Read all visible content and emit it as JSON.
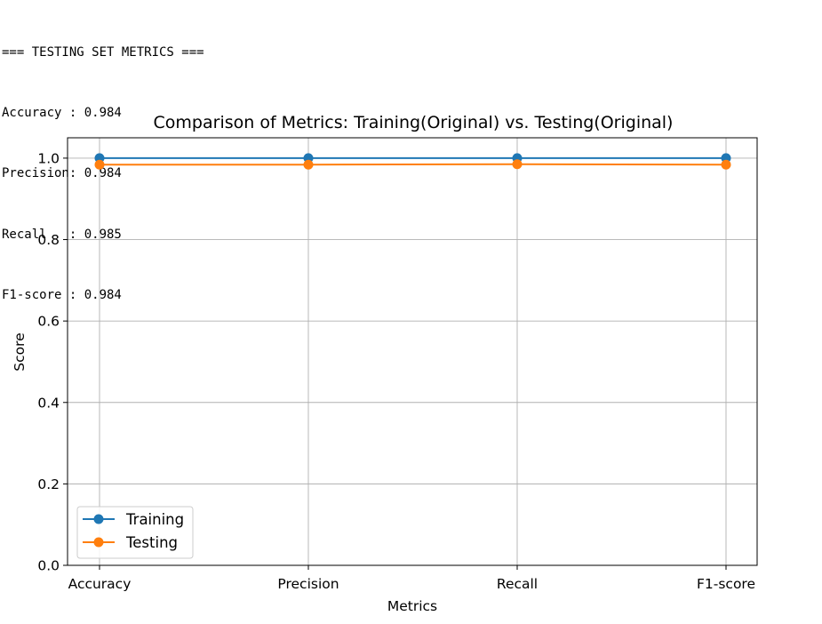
{
  "console": {
    "lines": [
      "=== TESTING SET METRICS ===",
      "Accuracy : 0.984",
      "Precision: 0.984",
      "Recall   : 0.985",
      "F1-score : 0.984"
    ]
  },
  "chart_data": {
    "type": "line",
    "title": "Comparison of Metrics: Training(Original) vs. Testing(Original)",
    "xlabel": "Metrics",
    "ylabel": "Score",
    "categories": [
      "Accuracy",
      "Precision",
      "Recall",
      "F1-score"
    ],
    "ylim": [
      0.0,
      1.05
    ],
    "yticks": [
      "0.0",
      "0.2",
      "0.4",
      "0.6",
      "0.8",
      "1.0"
    ],
    "grid": true,
    "legend_position": "lower-left",
    "series": [
      {
        "name": "Training",
        "color": "#1f77b4",
        "values": [
          1.0,
          1.0,
          1.0,
          1.0
        ]
      },
      {
        "name": "Testing",
        "color": "#ff7f0e",
        "values": [
          0.984,
          0.984,
          0.985,
          0.984
        ]
      }
    ]
  }
}
